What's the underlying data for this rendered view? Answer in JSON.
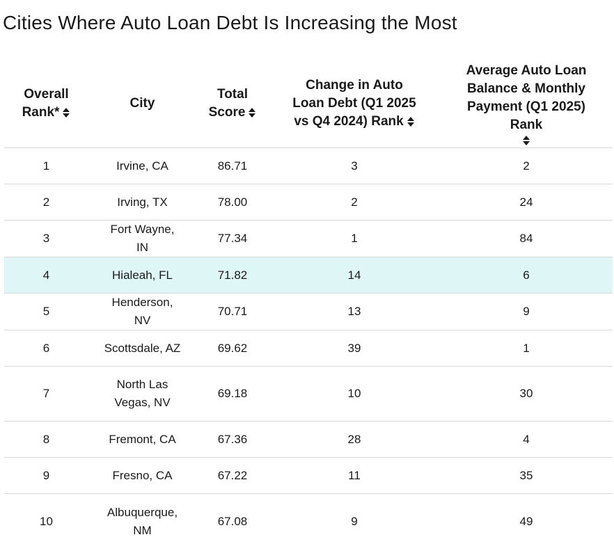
{
  "page": {
    "title": "Cities Where Auto Loan Debt Is Increasing the Most"
  },
  "table": {
    "headers": {
      "rank": "Overall Rank*",
      "city": "City",
      "score": "Total Score",
      "change_rank": "Change in Auto Loan Debt (Q1 2025 vs Q4 2024) Rank",
      "balance_rank": "Average Auto Loan Balance & Monthly Payment (Q1 2025) Rank"
    },
    "rows": [
      {
        "rank": "1",
        "city": "Irvine, CA",
        "score": "86.71",
        "change_rank": "3",
        "balance_rank": "2"
      },
      {
        "rank": "2",
        "city": "Irving, TX",
        "score": "78.00",
        "change_rank": "2",
        "balance_rank": "24"
      },
      {
        "rank": "3",
        "city": "Fort Wayne, IN",
        "score": "77.34",
        "change_rank": "1",
        "balance_rank": "84"
      },
      {
        "rank": "4",
        "city": "Hialeah, FL",
        "score": "71.82",
        "change_rank": "14",
        "balance_rank": "6"
      },
      {
        "rank": "5",
        "city": "Henderson, NV",
        "score": "70.71",
        "change_rank": "13",
        "balance_rank": "9"
      },
      {
        "rank": "6",
        "city": "Scottsdale, AZ",
        "score": "69.62",
        "change_rank": "39",
        "balance_rank": "1"
      },
      {
        "rank": "7",
        "city": "North Las Vegas, NV",
        "score": "69.18",
        "change_rank": "10",
        "balance_rank": "30"
      },
      {
        "rank": "8",
        "city": "Fremont, CA",
        "score": "67.36",
        "change_rank": "28",
        "balance_rank": "4"
      },
      {
        "rank": "9",
        "city": "Fresno, CA",
        "score": "67.22",
        "change_rank": "11",
        "balance_rank": "35"
      },
      {
        "rank": "10",
        "city": "Albuquerque, NM",
        "score": "67.08",
        "change_rank": "9",
        "balance_rank": "49"
      }
    ]
  },
  "colors": {
    "highlight_row": "#dff6f6",
    "divider": "#d8d8d8",
    "text": "#1a1a1a"
  },
  "icons": {
    "sort": "sort-updown-icon"
  }
}
